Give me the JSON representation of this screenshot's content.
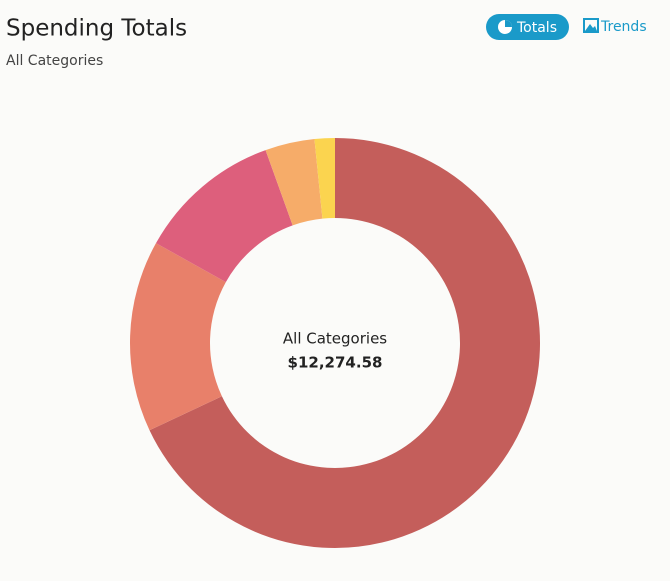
{
  "header": {
    "title": "Spending Totals",
    "subtitle": "All Categories",
    "tabs": [
      "Totals",
      "Trends"
    ]
  },
  "chart_data": {
    "type": "donut",
    "center_label": "All Categories",
    "center_value": "$12,274.58",
    "values": [
      68.0,
      15.1,
      11.4,
      3.9,
      1.6
    ],
    "colors": [
      "#c45e5b",
      "#e8806a",
      "#dd5f7c",
      "#f6ac69",
      "#fbd44f"
    ]
  }
}
